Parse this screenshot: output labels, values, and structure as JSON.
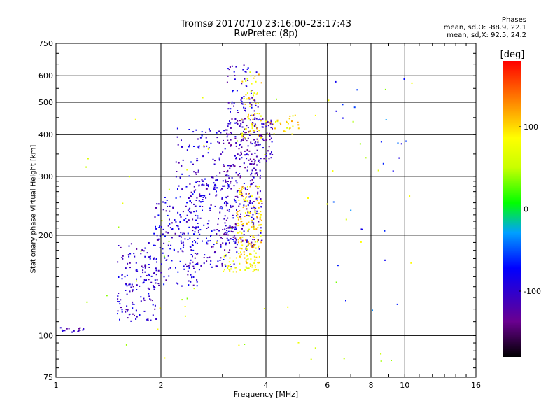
{
  "chart_data": {
    "type": "scatter",
    "title": "Tromsø 20170710 23:16:00–23:17:43",
    "subtitle": "RwPretec (8p)",
    "xlabel": "Frequency [MHz]",
    "ylabel": "Stationary phase Virtual Height [km]",
    "x_scale": "log",
    "y_scale": "log",
    "xlim": [
      1,
      16
    ],
    "ylim": [
      75,
      750
    ],
    "x_ticks": [
      1,
      2,
      4,
      6,
      8,
      10,
      16
    ],
    "x_tick_labels": [
      "1",
      "2",
      "4",
      "6",
      "8",
      "10",
      "16"
    ],
    "y_ticks": [
      75,
      100,
      200,
      300,
      400,
      500,
      600,
      750
    ],
    "y_tick_labels": [
      "75",
      "100",
      "200",
      "300",
      "400",
      "500",
      "600",
      "750"
    ],
    "grid": true,
    "phase_stats": {
      "heading": "Phases",
      "line_o": "mean, sd,O: -88.9, 22.1",
      "line_x": "mean, sd,X:  92.5, 24.2"
    },
    "colorbar": {
      "label": "[deg]",
      "range": [
        -180,
        180
      ],
      "ticks": [
        100,
        0,
        -100
      ],
      "tick_labels": [
        "100",
        "0",
        "-100"
      ]
    },
    "clusters": [
      {
        "x": [
          1.0,
          1.2
        ],
        "y": [
          102,
          106
        ],
        "phase": -110,
        "n": 18
      },
      {
        "x": [
          1.5,
          1.95
        ],
        "y": [
          110,
          190
        ],
        "phase": -100,
        "n": 150
      },
      {
        "x": [
          1.9,
          2.6
        ],
        "y": [
          140,
          260
        ],
        "phase": -95,
        "n": 170
      },
      {
        "x": [
          2.4,
          3.3
        ],
        "y": [
          160,
          300
        ],
        "phase": -100,
        "n": 200
      },
      {
        "x": [
          2.2,
          3.0
        ],
        "y": [
          260,
          420
        ],
        "phase": -95,
        "n": 90
      },
      {
        "x": [
          3.0,
          3.9
        ],
        "y": [
          180,
          330
        ],
        "phase": -110,
        "n": 200
      },
      {
        "x": [
          3.0,
          4.2
        ],
        "y": [
          330,
          450
        ],
        "phase": -110,
        "n": 170
      },
      {
        "x": [
          3.1,
          3.8
        ],
        "y": [
          450,
          650
        ],
        "phase": -100,
        "n": 60
      },
      {
        "x": [
          3.3,
          3.9
        ],
        "y": [
          160,
          280
        ],
        "phase": 95,
        "n": 150
      },
      {
        "x": [
          3.4,
          3.9
        ],
        "y": [
          380,
          620
        ],
        "phase": 90,
        "n": 60
      },
      {
        "x": [
          3.0,
          3.8
        ],
        "y": [
          155,
          175
        ],
        "phase": 85,
        "n": 40
      },
      {
        "x": [
          4.0,
          5.0
        ],
        "y": [
          400,
          460
        ],
        "phase": 95,
        "n": 30
      },
      {
        "x": [
          1.2,
          10.5
        ],
        "y": [
          80,
          650
        ],
        "phase": 60,
        "n": 60
      },
      {
        "x": [
          6.2,
          10.2
        ],
        "y": [
          110,
          600
        ],
        "phase": -60,
        "n": 25
      }
    ]
  }
}
